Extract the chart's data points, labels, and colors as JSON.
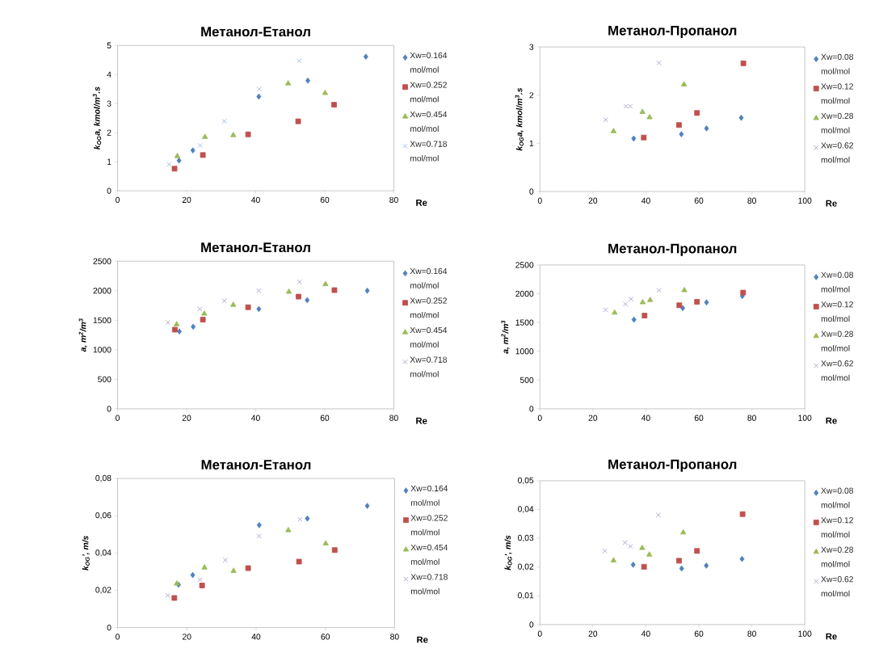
{
  "chart_data": [
    {
      "type": "scatter",
      "title": "Метанол-Етанол",
      "xlabel": "Re",
      "ylabel": "k$_{OG}$a, kmol/m$^{3}$.s",
      "xlim": [
        0,
        80
      ],
      "xticks": [
        0,
        20,
        40,
        60,
        80
      ],
      "ylim": [
        0,
        5
      ],
      "yticks": [
        0,
        1,
        2,
        3,
        4,
        5
      ],
      "legend": "right",
      "series": [
        {
          "name": "Xw=0.164 mol/mol",
          "color": "#4f81bd",
          "marker": "diamond",
          "x": [
            17.8,
            21.8,
            40.9,
            55.1,
            71.9
          ],
          "values": [
            1.04,
            1.39,
            3.24,
            3.79,
            4.61
          ]
        },
        {
          "name": "Xw=0.252 mol/mol",
          "color": "#c0504d",
          "marker": "square",
          "x": [
            16.5,
            24.7,
            37.8,
            52.3,
            62.7
          ],
          "values": [
            0.76,
            1.23,
            1.94,
            2.39,
            2.96
          ]
        },
        {
          "name": "Xw=0.454 mol/mol",
          "color": "#9bbb59",
          "marker": "triangle",
          "x": [
            17.3,
            25.3,
            33.5,
            49.4,
            60.1
          ],
          "values": [
            1.19,
            1.85,
            1.91,
            3.69,
            3.36
          ]
        },
        {
          "name": "Xw=0.718 mol/mol",
          "color": "#8eb4e3",
          "marker": "cross",
          "x": [
            14.9,
            23.9,
            30.9,
            41.0,
            52.6
          ],
          "values": [
            0.91,
            1.56,
            2.39,
            3.5,
            4.47
          ]
        }
      ]
    },
    {
      "type": "scatter",
      "title": "Метанол-Пропанол",
      "xlabel": "Re",
      "ylabel": "k$_{OG}$a, kmol/m$^{3}$.s",
      "xlim": [
        0,
        100
      ],
      "xticks": [
        0,
        20,
        40,
        60,
        80,
        100
      ],
      "ylim": [
        0,
        3
      ],
      "yticks": [
        0,
        1,
        2,
        3
      ],
      "legend": "right",
      "series": [
        {
          "name": "Xw=0.08 mol/mol",
          "color": "#4f81bd",
          "marker": "diamond",
          "x": [
            35.4,
            53.4,
            62.9,
            76.0
          ],
          "values": [
            1.1,
            1.19,
            1.31,
            1.53
          ]
        },
        {
          "name": "Xw=0.12 mol/mol",
          "color": "#c0504d",
          "marker": "square",
          "x": [
            39.2,
            52.5,
            59.3,
            76.8
          ],
          "values": [
            1.12,
            1.38,
            1.63,
            2.66
          ]
        },
        {
          "name": "Xw=0.28 mol/mol",
          "color": "#9bbb59",
          "marker": "triangle",
          "x": [
            27.8,
            38.7,
            41.4,
            54.4
          ],
          "values": [
            1.25,
            1.65,
            1.54,
            2.22
          ]
        },
        {
          "name": "Xw=0.62 mol/mol",
          "color": "#a797c5",
          "marker": "cross",
          "x": [
            24.9,
            32.5,
            34.1,
            44.9
          ],
          "values": [
            1.49,
            1.77,
            1.77,
            2.67
          ]
        }
      ]
    },
    {
      "type": "scatter",
      "title": "Метанол-Етанол",
      "xlabel": "Re",
      "ylabel": "a, m$^{2}$/m$^{3}$",
      "xlim": [
        0,
        80
      ],
      "xticks": [
        0,
        20,
        40,
        60,
        80
      ],
      "ylim": [
        0,
        2500
      ],
      "yticks": [
        0,
        500,
        1000,
        1500,
        2000,
        2500
      ],
      "legend": "right",
      "series": [
        {
          "name": "Xw=0.164 mol/mol",
          "color": "#4f81bd",
          "marker": "diamond",
          "x": [
            17.9,
            21.9,
            40.9,
            54.9,
            72.3
          ],
          "values": [
            1310,
            1390,
            1690,
            1840,
            2000
          ]
        },
        {
          "name": "Xw=0.252 mol/mol",
          "color": "#c0504d",
          "marker": "square",
          "x": [
            16.6,
            24.7,
            37.8,
            52.4,
            62.8
          ],
          "values": [
            1340,
            1510,
            1720,
            1900,
            2010
          ]
        },
        {
          "name": "Xw=0.454 mol/mol",
          "color": "#9bbb59",
          "marker": "triangle",
          "x": [
            17.1,
            25.1,
            33.5,
            49.6,
            60.2
          ],
          "values": [
            1430,
            1610,
            1760,
            1980,
            2110
          ]
        },
        {
          "name": "Xw=0.718 mol/mol",
          "color": "#a797c5",
          "marker": "cross",
          "x": [
            14.6,
            23.8,
            30.9,
            40.9,
            52.7
          ],
          "values": [
            1460,
            1690,
            1830,
            2000,
            2150
          ]
        }
      ]
    },
    {
      "type": "scatter",
      "title": "Метанол-Пропанол",
      "xlabel": "Re",
      "ylabel": "a, m$^{2}$/m$^{3}$",
      "xlim": [
        0,
        100
      ],
      "xticks": [
        0,
        20,
        40,
        60,
        80,
        100
      ],
      "ylim": [
        0,
        2500
      ],
      "yticks": [
        0,
        500,
        1000,
        1500,
        2000,
        2500
      ],
      "legend": "right",
      "series": [
        {
          "name": "Xw=0.08 mol/mol",
          "color": "#4f81bd",
          "marker": "diamond",
          "x": [
            35.5,
            53.9,
            62.9,
            76.4
          ],
          "values": [
            1550,
            1750,
            1850,
            1960
          ]
        },
        {
          "name": "Xw=0.12 mol/mol",
          "color": "#c0504d",
          "marker": "square",
          "x": [
            39.5,
            52.6,
            59.3,
            76.7
          ],
          "values": [
            1620,
            1800,
            1860,
            2020
          ]
        },
        {
          "name": "Xw=0.28 mol/mol",
          "color": "#9bbb59",
          "marker": "triangle",
          "x": [
            28.2,
            38.8,
            41.6,
            54.5
          ],
          "values": [
            1670,
            1850,
            1890,
            2060
          ]
        },
        {
          "name": "Xw=0.62 mol/mol",
          "color": "#a797c5",
          "marker": "cross",
          "x": [
            24.8,
            32.3,
            34.4,
            44.9
          ],
          "values": [
            1720,
            1820,
            1910,
            2060
          ]
        }
      ]
    },
    {
      "type": "scatter",
      "title": "Метанол-Етанол",
      "xlabel": "Re",
      "ylabel": "k$_{OG}$', m/s",
      "xlim": [
        0,
        80
      ],
      "xticks": [
        0,
        20,
        40,
        60,
        80
      ],
      "ylim": [
        0,
        0.08
      ],
      "yticks": [
        0,
        {
          "value": 0.02,
          "label": "0,02"
        },
        {
          "value": 0.04,
          "label": "0,04"
        },
        {
          "value": 0.06,
          "label": "0,06"
        },
        {
          "value": 0.08,
          "label": "0,08"
        }
      ],
      "legend": "right",
      "series": [
        {
          "name": "Xw=0.164 mol/mol",
          "color": "#4f81bd",
          "marker": "diamond",
          "x": [
            17.6,
            21.7,
            40.9,
            54.8,
            72.1
          ],
          "values": [
            0.023,
            0.0282,
            0.055,
            0.0585,
            0.0653
          ]
        },
        {
          "name": "Xw=0.252 mol/mol",
          "color": "#c0504d",
          "marker": "square",
          "x": [
            16.4,
            24.4,
            37.7,
            52.4,
            62.7
          ],
          "values": [
            0.0159,
            0.0226,
            0.0319,
            0.0354,
            0.0416
          ]
        },
        {
          "name": "Xw=0.454 mol/mol",
          "color": "#9bbb59",
          "marker": "triangle",
          "x": [
            17.1,
            25.1,
            33.5,
            49.3,
            60.1
          ],
          "values": [
            0.0236,
            0.0322,
            0.0304,
            0.0522,
            0.0451
          ]
        },
        {
          "name": "Xw=0.718 mol/mol",
          "color": "#a797c5",
          "marker": "cross",
          "x": [
            14.5,
            23.8,
            31.1,
            40.9,
            52.7
          ],
          "values": [
            0.0173,
            0.0257,
            0.0362,
            0.0491,
            0.0581
          ]
        }
      ]
    },
    {
      "type": "scatter",
      "title": "Метанол-Пропанол",
      "xlabel": "Re",
      "ylabel": "k$_{OG}$', m/s",
      "xlim": [
        0,
        100
      ],
      "xticks": [
        0,
        20,
        40,
        60,
        80,
        100
      ],
      "ylim": [
        0,
        0.05
      ],
      "yticks": [
        0,
        {
          "value": 0.01,
          "label": "0,01"
        },
        {
          "value": 0.02,
          "label": "0,02"
        },
        {
          "value": 0.03,
          "label": "0,03"
        },
        {
          "value": 0.04,
          "label": "0,04"
        },
        {
          "value": 0.05,
          "label": "0,05"
        }
      ],
      "legend": "right",
      "series": [
        {
          "name": "Xw=0.08 mol/mol",
          "color": "#4f81bd",
          "marker": "diamond",
          "x": [
            35.2,
            53.5,
            62.8,
            76.3
          ],
          "values": [
            0.0208,
            0.0195,
            0.0205,
            0.0228
          ]
        },
        {
          "name": "Xw=0.12 mol/mol",
          "color": "#c0504d",
          "marker": "square",
          "x": [
            39.3,
            52.5,
            59.3,
            76.5
          ],
          "values": [
            0.0201,
            0.0222,
            0.0256,
            0.0384
          ]
        },
        {
          "name": "Xw=0.28 mol/mol",
          "color": "#9bbb59",
          "marker": "triangle",
          "x": [
            27.8,
            38.6,
            41.3,
            54.1
          ],
          "values": [
            0.0223,
            0.0266,
            0.0243,
            0.032
          ]
        },
        {
          "name": "Xw=0.62 mol/mol",
          "color": "#a797c5",
          "marker": "cross",
          "x": [
            24.5,
            32.1,
            34.2,
            44.7
          ],
          "values": [
            0.0256,
            0.0285,
            0.0272,
            0.0381
          ]
        }
      ]
    }
  ]
}
